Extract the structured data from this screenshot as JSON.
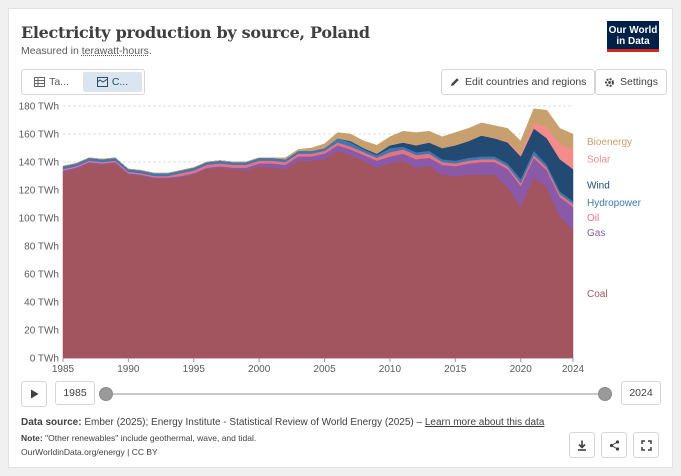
{
  "header": {
    "title": "Electricity production by source, Poland",
    "subtitle_prefix": "Measured in ",
    "subtitle_unit": "terawatt-hours",
    "subtitle_suffix": ".",
    "logo_line1": "Our World",
    "logo_line2": "in Data"
  },
  "toolbar": {
    "tab_table": "Ta...",
    "tab_chart": "C...",
    "edit_label": "Edit countries and regions",
    "settings_label": "Settings"
  },
  "timeline": {
    "start_year": "1985",
    "end_year": "2024"
  },
  "footer": {
    "source_label": "Data source:",
    "source_text": " Ember (2025); Energy Institute - Statistical Review of World Energy (2025) – ",
    "source_link": "Learn more about this data",
    "note_label": "Note:",
    "note_text": " \"Other renewables\" include geothermal, wave, and tidal.",
    "url_text": "OurWorldinData.org/energy | CC BY"
  },
  "colors": {
    "coal": "#a2545f",
    "gas": "#8a5aa8",
    "oil": "#e8737f",
    "hydropower": "#3f77b1",
    "wind": "#234a72",
    "solar": "#f48c8c",
    "bioenergy": "#c8a06e"
  },
  "chart_data": {
    "type": "area",
    "stacked": true,
    "x": [
      1985,
      1986,
      1987,
      1988,
      1989,
      1990,
      1991,
      1992,
      1993,
      1994,
      1995,
      1996,
      1997,
      1998,
      1999,
      2000,
      2001,
      2002,
      2003,
      2004,
      2005,
      2006,
      2007,
      2008,
      2009,
      2010,
      2011,
      2012,
      2013,
      2014,
      2015,
      2016,
      2017,
      2018,
      2019,
      2020,
      2021,
      2022,
      2023,
      2024
    ],
    "ylim": [
      0,
      180
    ],
    "y_ticks": [
      0,
      20,
      40,
      60,
      80,
      100,
      120,
      140,
      160,
      180
    ],
    "y_tick_labels": [
      "0 TWh",
      "20 TWh",
      "40 TWh",
      "60 TWh",
      "80 TWh",
      "100 TWh",
      "120 TWh",
      "140 TWh",
      "160 TWh",
      "180 TWh"
    ],
    "x_ticks": [
      1985,
      1990,
      1995,
      2000,
      2005,
      2010,
      2015,
      2020,
      2024
    ],
    "x_tick_labels": [
      "1985",
      "1990",
      "1995",
      "2000",
      "2005",
      "2010",
      "2015",
      "2020",
      "2024"
    ],
    "series": [
      {
        "name": "Coal",
        "color_key": "coal",
        "values": [
          133,
          135,
          139,
          138,
          139,
          131,
          130,
          128,
          128,
          129,
          131,
          135,
          136,
          135,
          134,
          137,
          136,
          135,
          141,
          141,
          142,
          148,
          145,
          141,
          136,
          139,
          141,
          136,
          137,
          131,
          130,
          131,
          131,
          131,
          122,
          108,
          129,
          122,
          101,
          92
        ]
      },
      {
        "name": "Gas",
        "color_key": "gas",
        "values": [
          1,
          1,
          1,
          1,
          1,
          1,
          1,
          1,
          1,
          1,
          1,
          1,
          1,
          1,
          2,
          2,
          3,
          3,
          3,
          3,
          4,
          4,
          4,
          4,
          5,
          5,
          5,
          6,
          6,
          7,
          7,
          8,
          9,
          9,
          13,
          15,
          14,
          12,
          14,
          16
        ]
      },
      {
        "name": "Oil",
        "color_key": "oil",
        "values": [
          1,
          1,
          1,
          1,
          1,
          1,
          1,
          1,
          1,
          2,
          2,
          2,
          2,
          2,
          2,
          2,
          2,
          2,
          2,
          2,
          2,
          2,
          2,
          2,
          2,
          3,
          3,
          3,
          3,
          2,
          2,
          2,
          2,
          2,
          2,
          2,
          2,
          2,
          2,
          2
        ]
      },
      {
        "name": "Hydropower",
        "color_key": "hydropower",
        "values": [
          2,
          2,
          2,
          2,
          2,
          2,
          2,
          2,
          2,
          2,
          2,
          2,
          2,
          2,
          2,
          2,
          2,
          2,
          2,
          2,
          2,
          3,
          3,
          2,
          2,
          3,
          2,
          2,
          2,
          2,
          2,
          2,
          2,
          2,
          2,
          3,
          3,
          2,
          2,
          2
        ]
      },
      {
        "name": "Wind",
        "color_key": "wind",
        "values": [
          0,
          0,
          0,
          0,
          0,
          0,
          0,
          0,
          0,
          0,
          0,
          0,
          0,
          0,
          0,
          0,
          0,
          0,
          0,
          0,
          0,
          0,
          1,
          1,
          1,
          2,
          3,
          5,
          6,
          8,
          11,
          12,
          15,
          13,
          15,
          16,
          16,
          19,
          23,
          23
        ]
      },
      {
        "name": "Solar",
        "color_key": "solar",
        "values": [
          0,
          0,
          0,
          0,
          0,
          0,
          0,
          0,
          0,
          0,
          0,
          0,
          0,
          0,
          0,
          0,
          0,
          0,
          0,
          0,
          0,
          0,
          0,
          0,
          0,
          0,
          0,
          0,
          0,
          0,
          0,
          0,
          0,
          0,
          1,
          2,
          4,
          8,
          11,
          14
        ]
      },
      {
        "name": "Bioenergy",
        "color_key": "bioenergy",
        "values": [
          0,
          0,
          0,
          0,
          0,
          0,
          0,
          0,
          0,
          0,
          0,
          0,
          0,
          0,
          0,
          0,
          0,
          1,
          1,
          2,
          3,
          4,
          5,
          5,
          6,
          6,
          8,
          9,
          8,
          8,
          9,
          9,
          9,
          9,
          9,
          9,
          10,
          12,
          11,
          11
        ]
      }
    ]
  }
}
